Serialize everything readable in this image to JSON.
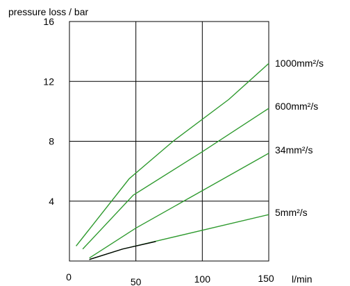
{
  "chart_data": {
    "type": "line",
    "title": "",
    "ylabel": "pressure loss / bar",
    "xlabel": "l/min",
    "xlim": [
      0,
      150
    ],
    "ylim": [
      0,
      16
    ],
    "x_ticks": [
      0,
      50,
      100,
      150
    ],
    "y_ticks": [
      4,
      8,
      12,
      16
    ],
    "grid": true,
    "series": [
      {
        "name": "1000mm²/s",
        "color": "#2e9a2e",
        "points": [
          [
            5,
            1.0
          ],
          [
            45,
            5.5
          ],
          [
            78,
            8.0
          ],
          [
            120,
            10.8
          ],
          [
            150,
            13.2
          ]
        ]
      },
      {
        "name": "600mm²/s",
        "color": "#2e9a2e",
        "points": [
          [
            10,
            0.8
          ],
          [
            48,
            4.4
          ],
          [
            100,
            7.3
          ],
          [
            150,
            10.2
          ]
        ]
      },
      {
        "name": "34mm²/s",
        "color": "#2e9a2e",
        "points": [
          [
            15,
            0.2
          ],
          [
            50,
            2.2
          ],
          [
            150,
            7.2
          ]
        ]
      },
      {
        "name": "5mm²/s",
        "color": "#2e9a2e",
        "points": [
          [
            15,
            0.1
          ],
          [
            40,
            0.8
          ],
          [
            150,
            3.1
          ]
        ]
      },
      {
        "name": "",
        "color": "#000000",
        "points": [
          [
            15,
            0.1
          ],
          [
            40,
            0.8
          ],
          [
            65,
            1.3
          ]
        ]
      }
    ]
  }
}
